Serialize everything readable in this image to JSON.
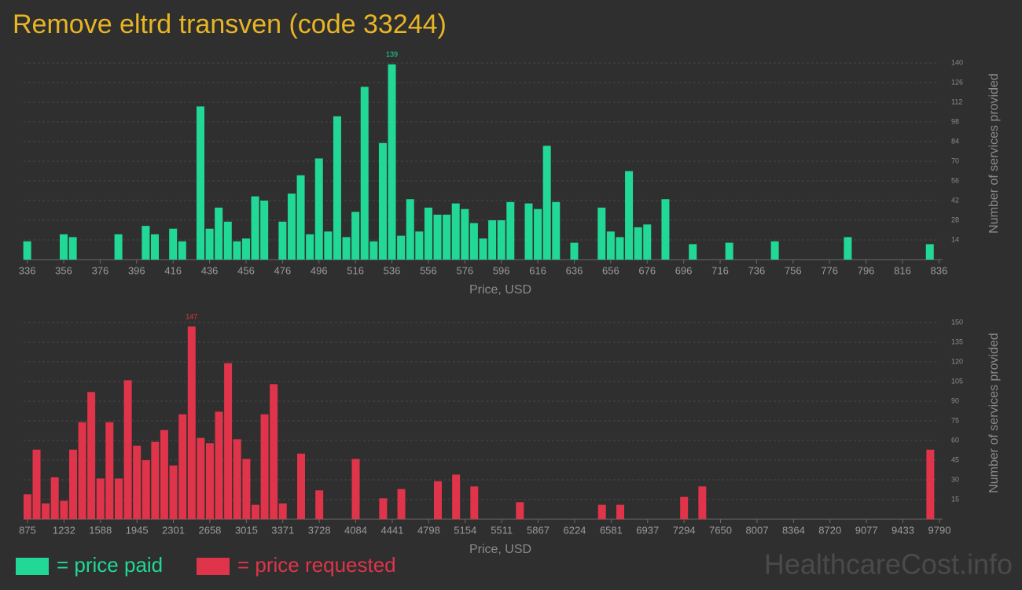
{
  "title": "Remove eltrd transven (code 33244)",
  "watermark": "HealthcareCost.info",
  "chart_data": [
    {
      "type": "bar",
      "x": [
        336,
        356,
        361,
        386,
        401,
        406,
        416,
        421,
        431,
        436,
        441,
        446,
        451,
        456,
        461,
        466,
        476,
        481,
        486,
        491,
        496,
        501,
        506,
        511,
        516,
        521,
        526,
        531,
        536,
        541,
        546,
        551,
        556,
        561,
        566,
        571,
        576,
        581,
        586,
        591,
        596,
        601,
        611,
        616,
        621,
        626,
        636,
        651,
        656,
        661,
        666,
        671,
        676,
        686,
        701,
        721,
        746,
        786,
        831
      ],
      "series": [
        {
          "name": "= price paid",
          "color": "#22d897",
          "values": [
            13,
            18,
            16,
            18,
            24,
            18,
            22,
            13,
            109,
            22,
            37,
            27,
            13,
            15,
            45,
            42,
            27,
            47,
            60,
            18,
            72,
            20,
            102,
            16,
            34,
            123,
            13,
            83,
            139,
            17,
            43,
            20,
            37,
            32,
            32,
            40,
            36,
            26,
            15,
            28,
            28,
            41,
            40,
            36,
            81,
            41,
            12,
            37,
            20,
            16,
            63,
            23,
            25,
            43,
            11,
            12,
            13,
            16,
            11
          ]
        }
      ],
      "xlim": [
        334,
        838
      ],
      "xticks": [
        336,
        356,
        376,
        396,
        416,
        436,
        456,
        476,
        496,
        516,
        536,
        556,
        576,
        596,
        616,
        636,
        656,
        676,
        696,
        716,
        736,
        756,
        776,
        796,
        816,
        836
      ],
      "ylim": [
        0,
        140
      ],
      "yticks": [
        14,
        28,
        42,
        56,
        70,
        84,
        98,
        112,
        126,
        140
      ],
      "xlabel": "Price, USD",
      "ylabel": "Number of services provided",
      "grid": true
    },
    {
      "type": "bar",
      "x": [
        875,
        964,
        1053,
        1142,
        1232,
        1321,
        1410,
        1499,
        1588,
        1677,
        1767,
        1856,
        1945,
        2034,
        2123,
        2212,
        2301,
        2391,
        2480,
        2569,
        2658,
        2747,
        2836,
        2925,
        3015,
        3104,
        3193,
        3282,
        3371,
        3550,
        3728,
        4084,
        4352,
        4530,
        4887,
        5065,
        5243,
        5689,
        6491,
        6670,
        7294,
        7472,
        9701
      ],
      "series": [
        {
          "name": "= price requested",
          "color": "#e0344a",
          "values": [
            19,
            53,
            12,
            32,
            14,
            53,
            74,
            97,
            31,
            74,
            31,
            106,
            56,
            45,
            59,
            68,
            41,
            80,
            147,
            62,
            58,
            82,
            119,
            61,
            46,
            11,
            80,
            103,
            12,
            50,
            22,
            46,
            16,
            23,
            29,
            34,
            25,
            13,
            11,
            11,
            17,
            25,
            53
          ]
        }
      ],
      "xlim": [
        837,
        9821
      ],
      "xticks": [
        875,
        1232,
        1588,
        1945,
        2301,
        2658,
        3015,
        3371,
        3728,
        4084,
        4441,
        4798,
        5154,
        5511,
        5867,
        6224,
        6581,
        6937,
        7294,
        7650,
        8007,
        8364,
        8720,
        9077,
        9433,
        9790
      ],
      "ylim": [
        0,
        150
      ],
      "yticks": [
        15,
        30,
        45,
        60,
        75,
        90,
        105,
        120,
        135,
        150
      ],
      "xlabel": "Price, USD",
      "ylabel": "Number of services provided",
      "grid": true
    }
  ]
}
